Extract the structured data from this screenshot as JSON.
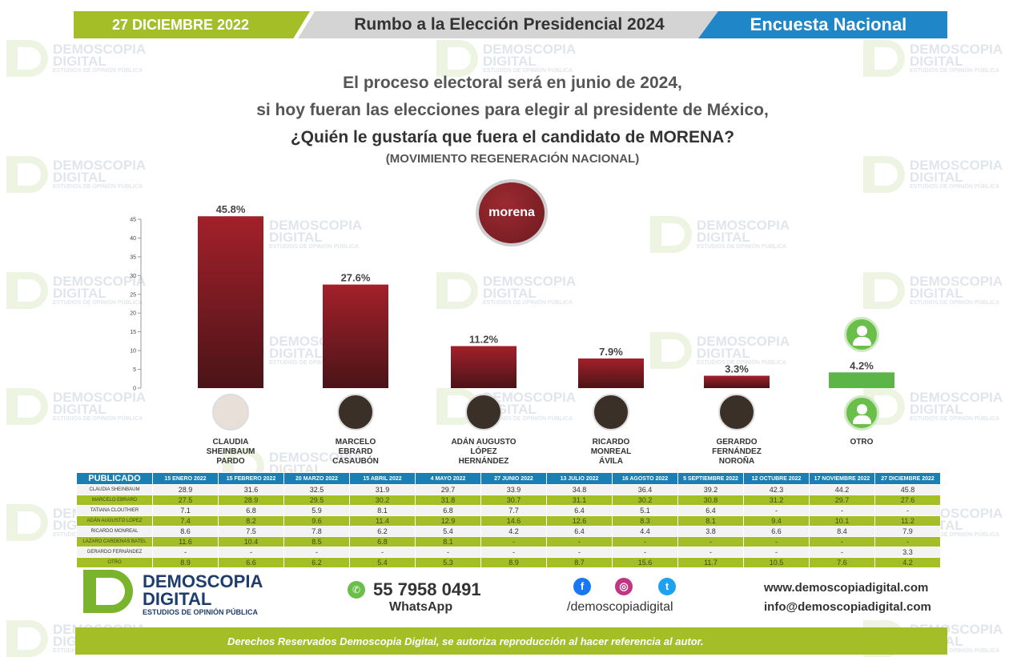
{
  "header": {
    "date": "27 DICIEMBRE 2022",
    "title": "Rumbo a la Elección Presidencial 2024",
    "right": "Encuesta Nacional"
  },
  "question": {
    "line1": "El proceso electoral será en junio de 2024,",
    "line2": "si hoy fueran las elecciones para elegir al presidente de México,",
    "line3": "¿Quién le gustaría que fuera el candidato de MORENA?",
    "line4": "(MOVIMIENTO REGENERACIÓN NACIONAL)"
  },
  "party_logo": "morena",
  "watermark": {
    "line1": "DEMOSCOPIA",
    "line2": "DIGITAL",
    "line3": "ESTUDIOS DE OPINIÓN PÚBLICA"
  },
  "colors": {
    "bar_red": "#a3202a",
    "bar_dark": "#4a1418",
    "bar_green": "#5db54a",
    "brand_green": "#a4be28",
    "brand_blue": "#1a7fb2"
  },
  "chart_data": {
    "type": "bar",
    "categories": [
      "CLAUDIA SHEINBAUM PARDO",
      "MARCELO EBRARD CASAUBÓN",
      "ADÁN AUGUSTO LÓPEZ HERNÁNDEZ",
      "RICARDO MONREAL ÁVILA",
      "GERARDO FERNÁNDEZ NOROÑA",
      "OTRO"
    ],
    "category_lines": [
      [
        "CLAUDIA",
        "SHEINBAUM",
        "PARDO"
      ],
      [
        "MARCELO",
        "EBRARD",
        "CASAUBÓN"
      ],
      [
        "ADÁN AUGUSTO",
        "LÓPEZ",
        "HERNÁNDEZ"
      ],
      [
        "RICARDO",
        "MONREAL",
        "ÁVILA"
      ],
      [
        "GERARDO",
        "FERNÁNDEZ",
        "NOROÑA"
      ],
      [
        "OTRO"
      ]
    ],
    "values": [
      45.8,
      27.6,
      11.2,
      7.9,
      3.3,
      4.2
    ],
    "labels": [
      "45.8%",
      "27.6%",
      "11.2%",
      "7.9%",
      "3.3%",
      "4.2%"
    ],
    "ylim": [
      0,
      45
    ],
    "yticks": [
      0,
      5,
      10,
      15,
      20,
      25,
      30,
      35,
      40,
      45
    ],
    "grid": false
  },
  "table": {
    "corner": "PUBLICADO",
    "dates": [
      "15 ENERO 2022",
      "15 FEBRERO 2022",
      "20 MARZO 2022",
      "15 ABRIL 2022",
      "4 MAYO 2022",
      "27 JUNIO 2022",
      "13 JULIO 2022",
      "16 AGOSTO 2022",
      "5 SEPTIEMBRE 2022",
      "12 OCTUBRE 2022",
      "17 NOVIEMBRE 2022",
      "27 DICIEMBRE 2022"
    ],
    "rows": [
      {
        "name": "CLAUDIA SHEINBAUM",
        "values": [
          "28.9",
          "31.6",
          "32.5",
          "31.9",
          "29.7",
          "33.9",
          "34.8",
          "36.4",
          "39.2",
          "42.3",
          "44.2",
          "45.8"
        ]
      },
      {
        "name": "MARCELO EBRARD",
        "values": [
          "27.5",
          "28.9",
          "29.5",
          "30.2",
          "31.8",
          "30.7",
          "31.1",
          "30.2",
          "30.8",
          "31.2",
          "29.7",
          "27.6"
        ]
      },
      {
        "name": "TATIANA CLOUTHIER",
        "values": [
          "7.1",
          "6.8",
          "5.9",
          "8.1",
          "6.8",
          "7.7",
          "6.4",
          "5.1",
          "6.4",
          "-",
          "-",
          "-"
        ]
      },
      {
        "name": "ADÁN AUGUSTO LÓPEZ",
        "values": [
          "7.4",
          "8.2",
          "9.6",
          "11.4",
          "12.9",
          "14.6",
          "12.6",
          "8.3",
          "8.1",
          "9.4",
          "10.1",
          "11.2"
        ]
      },
      {
        "name": "RICARDO MONREAL",
        "values": [
          "8.6",
          "7.5",
          "7.8",
          "6.2",
          "5.4",
          "4.2",
          "6.4",
          "4.4",
          "3.8",
          "6.6",
          "8.4",
          "7.9"
        ]
      },
      {
        "name": "LAZARO CARDENAS BATEL",
        "values": [
          "11.6",
          "10.4",
          "8.5",
          "6.8",
          "8.1",
          "-",
          "-",
          "-",
          "-",
          "-",
          "-",
          "-"
        ]
      },
      {
        "name": "GERARDO FERNÁNDEZ",
        "values": [
          "-",
          "-",
          "-",
          "-",
          "-",
          "-",
          "-",
          "-",
          "-",
          "-",
          "-",
          "3.3"
        ]
      },
      {
        "name": "OTRO",
        "values": [
          "8.9",
          "6.6",
          "6.2",
          "5.4",
          "5.3",
          "8.9",
          "8.7",
          "15.6",
          "11.7",
          "10.5",
          "7.6",
          "4.2"
        ]
      }
    ]
  },
  "footer": {
    "brand_line1": "DEMOSCOPIA",
    "brand_line2": "DIGITAL",
    "brand_line3": "ESTUDIOS DE OPINIÓN PÚBLICA",
    "phone": "55 7958 0491",
    "whatsapp": "WhatsApp",
    "social_handle": "/demoscopiadigital",
    "website": "www.demoscopiadigital.com",
    "email": "info@demoscopiadigital.com",
    "rights": "Derechos Reservados Demoscopia Digital, se autoriza reproducción al hacer referencia al autor.",
    "icons": [
      "facebook-icon",
      "instagram-icon",
      "twitter-icon",
      "whatsapp-icon"
    ]
  }
}
